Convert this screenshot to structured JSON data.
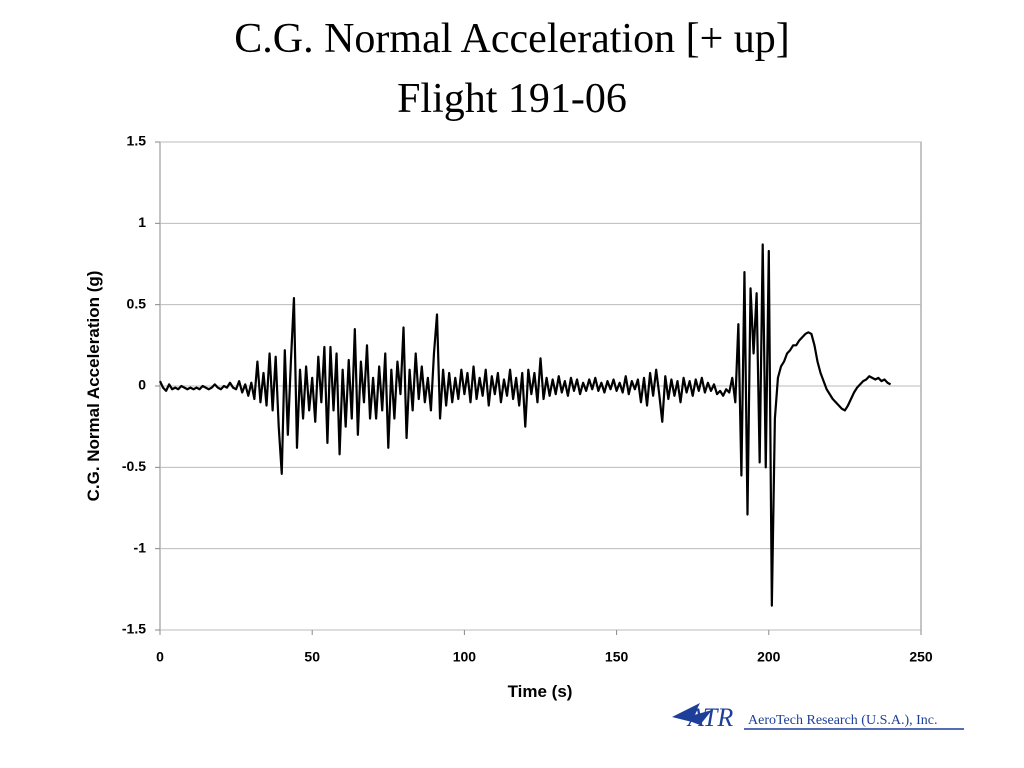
{
  "chart_data": {
    "type": "line",
    "title": "C.G. Normal Acceleration [+ up]",
    "subtitle": "Flight 191-06",
    "x_label": "Time (s)",
    "y_label": "C.G. Normal Acceleration (g)",
    "xlim": [
      0,
      250
    ],
    "xticks": [
      0,
      50,
      100,
      150,
      200,
      250
    ],
    "ylim": [
      -1.5,
      1.5
    ],
    "yticks": [
      1.5,
      1,
      0.5,
      0,
      -0.5,
      -1,
      -1.5
    ],
    "grid": true,
    "x": [
      0,
      1,
      2,
      3,
      4,
      5,
      6,
      7,
      8,
      9,
      10,
      11,
      12,
      13,
      14,
      15,
      16,
      17,
      18,
      19,
      20,
      21,
      22,
      23,
      24,
      25,
      26,
      27,
      28,
      29,
      30,
      31,
      32,
      33,
      34,
      35,
      36,
      37,
      38,
      39,
      40,
      41,
      42,
      43,
      44,
      45,
      46,
      47,
      48,
      49,
      50,
      51,
      52,
      53,
      54,
      55,
      56,
      57,
      58,
      59,
      60,
      61,
      62,
      63,
      64,
      65,
      66,
      67,
      68,
      69,
      70,
      71,
      72,
      73,
      74,
      75,
      76,
      77,
      78,
      79,
      80,
      81,
      82,
      83,
      84,
      85,
      86,
      87,
      88,
      89,
      90,
      91,
      92,
      93,
      94,
      95,
      96,
      97,
      98,
      99,
      100,
      101,
      102,
      103,
      104,
      105,
      106,
      107,
      108,
      109,
      110,
      111,
      112,
      113,
      114,
      115,
      116,
      117,
      118,
      119,
      120,
      121,
      122,
      123,
      124,
      125,
      126,
      127,
      128,
      129,
      130,
      131,
      132,
      133,
      134,
      135,
      136,
      137,
      138,
      139,
      140,
      141,
      142,
      143,
      144,
      145,
      146,
      147,
      148,
      149,
      150,
      151,
      152,
      153,
      154,
      155,
      156,
      157,
      158,
      159,
      160,
      161,
      162,
      163,
      164,
      165,
      166,
      167,
      168,
      169,
      170,
      171,
      172,
      173,
      174,
      175,
      176,
      177,
      178,
      179,
      180,
      181,
      182,
      183,
      184,
      185,
      186,
      187,
      188,
      189,
      190,
      191,
      192,
      193,
      194,
      195,
      196,
      197,
      198,
      199,
      200,
      201,
      202,
      203,
      204,
      205,
      206,
      207,
      208,
      209,
      210,
      211,
      212,
      213,
      214,
      215,
      216,
      217,
      218,
      219,
      220,
      221,
      222,
      223,
      224,
      225,
      226,
      227,
      228,
      229,
      230,
      231,
      232,
      233,
      234,
      235,
      236,
      237,
      238,
      239,
      240
    ],
    "series": [
      {
        "color": "#000000",
        "values": [
          0.03,
          -0.01,
          -0.03,
          0.01,
          -0.02,
          -0.01,
          -0.02,
          0,
          -0.01,
          -0.02,
          -0.01,
          -0.02,
          -0.01,
          -0.02,
          0,
          -0.01,
          -0.02,
          -0.01,
          0.01,
          -0.01,
          -0.02,
          0,
          -0.01,
          0.02,
          -0.01,
          -0.02,
          0.03,
          -0.04,
          0.01,
          -0.06,
          0.02,
          -0.08,
          0.15,
          -0.1,
          0.08,
          -0.12,
          0.2,
          -0.15,
          0.18,
          -0.25,
          -0.54,
          0.22,
          -0.3,
          0.15,
          0.54,
          -0.38,
          0.1,
          -0.2,
          0.12,
          -0.15,
          0.05,
          -0.22,
          0.18,
          -0.1,
          0.24,
          -0.35,
          0.24,
          -0.15,
          0.2,
          -0.42,
          0.1,
          -0.25,
          0.16,
          -0.2,
          0.35,
          -0.3,
          0.15,
          -0.1,
          0.25,
          -0.2,
          0.05,
          -0.2,
          0.12,
          -0.15,
          0.2,
          -0.38,
          0.1,
          -0.2,
          0.15,
          -0.05,
          0.36,
          -0.32,
          0.1,
          -0.15,
          0.2,
          -0.08,
          0.12,
          -0.1,
          0.05,
          -0.15,
          0.2,
          0.44,
          -0.2,
          0.1,
          -0.12,
          0.08,
          -0.1,
          0.05,
          -0.08,
          0.1,
          -0.05,
          0.08,
          -0.1,
          0.12,
          -0.08,
          0.05,
          -0.06,
          0.1,
          -0.12,
          0.06,
          -0.05,
          0.08,
          -0.1,
          0.04,
          -0.06,
          0.1,
          -0.08,
          0.05,
          -0.12,
          0.08,
          -0.25,
          0.1,
          -0.05,
          0.08,
          -0.1,
          0.17,
          -0.08,
          0.05,
          -0.06,
          0.04,
          -0.05,
          0.06,
          -0.04,
          0.03,
          -0.06,
          0.05,
          -0.03,
          0.04,
          -0.05,
          0.02,
          -0.03,
          0.04,
          -0.02,
          0.05,
          -0.03,
          0.02,
          -0.04,
          0.03,
          -0.02,
          0.04,
          -0.03,
          0.02,
          -0.04,
          0.06,
          -0.05,
          0.03,
          -0.02,
          0.04,
          -0.1,
          0.05,
          -0.12,
          0.08,
          -0.06,
          0.1,
          -0.05,
          -0.22,
          0.06,
          -0.08,
          0.04,
          -0.06,
          0.03,
          -0.1,
          0.05,
          -0.04,
          0.03,
          -0.06,
          0.04,
          -0.03,
          0.05,
          -0.04,
          0.02,
          -0.03,
          0.01,
          -0.05,
          -0.03,
          -0.06,
          -0.02,
          -0.04,
          0.05,
          -0.1,
          0.38,
          -0.55,
          0.7,
          -0.79,
          0.6,
          0.2,
          0.57,
          -0.47,
          0.87,
          -0.5,
          0.83,
          -1.35,
          -0.2,
          0.05,
          0.12,
          0.15,
          0.2,
          0.22,
          0.25,
          0.25,
          0.28,
          0.3,
          0.32,
          0.33,
          0.32,
          0.25,
          0.15,
          0.08,
          0.03,
          -0.02,
          -0.05,
          -0.08,
          -0.1,
          -0.12,
          -0.14,
          -0.15,
          -0.12,
          -0.08,
          -0.04,
          -0.01,
          0.01,
          0.03,
          0.04,
          0.06,
          0.05,
          0.04,
          0.05,
          0.03,
          0.04,
          0.02,
          0.01
        ]
      }
    ]
  },
  "logo": {
    "mark": "ATR",
    "text": "AeroTech Research (U.S.A.), Inc."
  }
}
